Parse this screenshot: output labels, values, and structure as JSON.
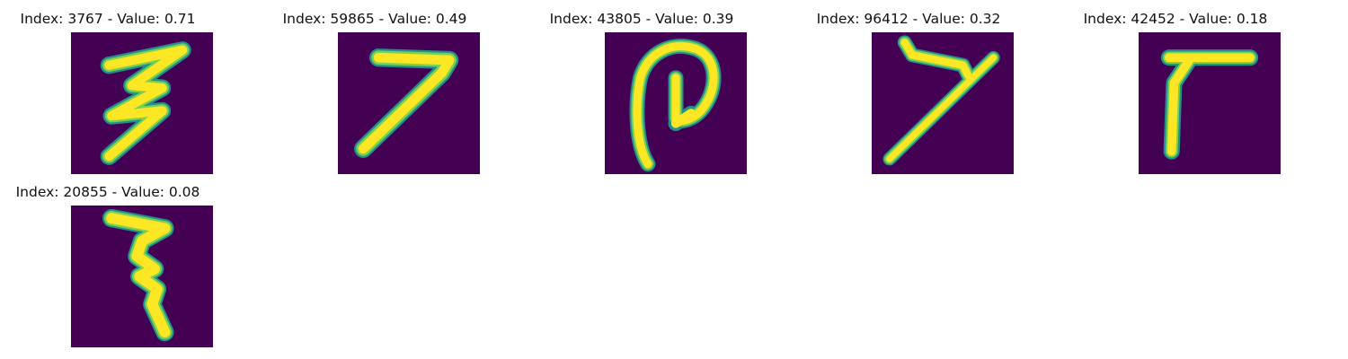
{
  "colors": {
    "background": "#ffffff",
    "image_background": "#440154",
    "stroke_outer": "#21918c",
    "stroke_mid": "#7ad151",
    "stroke_inner": "#fde725"
  },
  "panels": [
    {
      "title": "Index: 3767 - Value: 0.71",
      "icon": "handwritten-digit-image"
    },
    {
      "title": "Index: 59865 - Value: 0.49",
      "icon": "handwritten-digit-image"
    },
    {
      "title": "Index: 43805 - Value: 0.39",
      "icon": "handwritten-digit-image"
    },
    {
      "title": "Index: 96412 - Value: 0.32",
      "icon": "handwritten-digit-image"
    },
    {
      "title": "Index: 42452 - Value: 0.18",
      "icon": "handwritten-digit-image"
    },
    {
      "title": "Index: 20855 - Value: 0.08",
      "icon": "handwritten-digit-image"
    }
  ]
}
